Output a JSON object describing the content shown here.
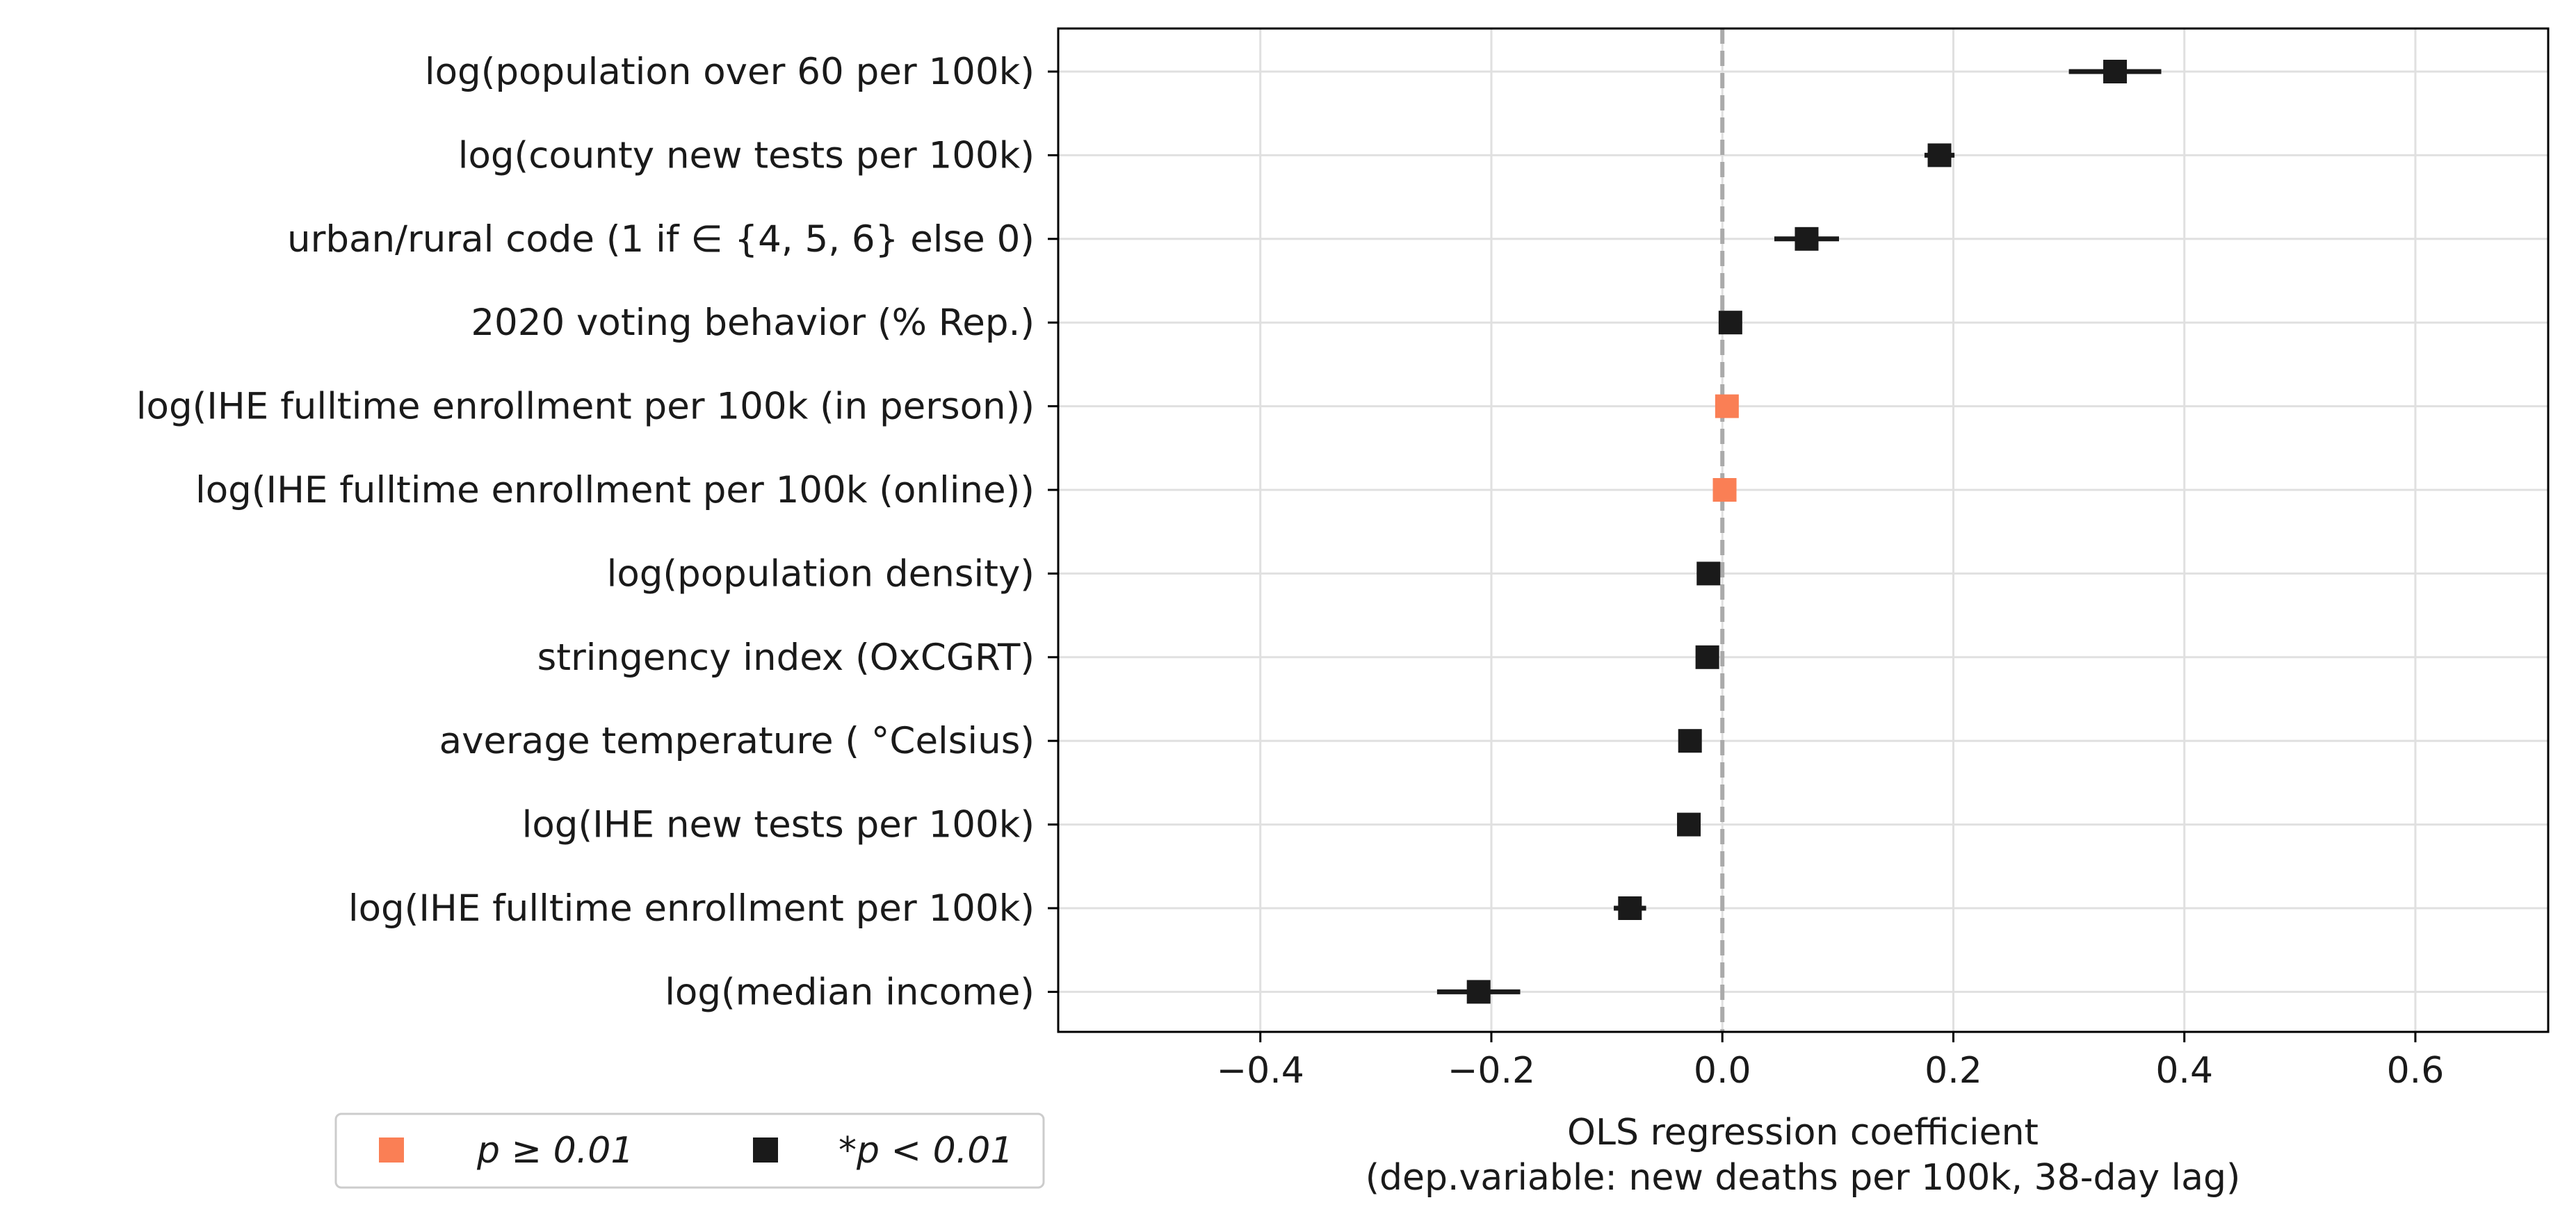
{
  "chart_data": {
    "type": "scatter",
    "xlabel": "OLS regression coefficient",
    "xlabel_sub": "(dep.variable: new deaths per 100k, 38-day lag)",
    "xlim": [
      -0.575,
      0.715
    ],
    "xticks": [
      -0.4,
      -0.2,
      0.0,
      0.2,
      0.4,
      0.6
    ],
    "xtick_labels": [
      "−0.4",
      "−0.2",
      "0.0",
      "0.2",
      "0.4",
      "0.6"
    ],
    "grid": true,
    "reference_line": {
      "x": 0.0,
      "style": "dashed",
      "color": "#aaaaaa"
    },
    "legend": {
      "position": "bottom-left",
      "entries": [
        {
          "label": "p ≥ 0.01",
          "color": "#fa7f55"
        },
        {
          "label": "*p < 0.01",
          "color": "#1a1a1a"
        }
      ]
    },
    "colors": {
      "not_significant": "#fa7f55",
      "significant": "#1a1a1a"
    },
    "points": [
      {
        "label": "log(population over 60 per 100k)",
        "coef": 0.34,
        "ci": [
          0.3,
          0.38
        ],
        "significant": true
      },
      {
        "label": "log(county new tests per 100k)",
        "coef": 0.188,
        "ci": [
          0.175,
          0.201
        ],
        "significant": true
      },
      {
        "label": "urban/rural code (1 if  ∈ {4, 5, 6} else 0)",
        "coef": 0.073,
        "ci": [
          0.045,
          0.101
        ],
        "significant": true
      },
      {
        "label": "2020 voting behavior (% Rep.)",
        "coef": 0.007,
        "ci": [
          0.004,
          0.01
        ],
        "significant": true
      },
      {
        "label": "log(IHE fulltime enrollment per 100k (in person))",
        "coef": 0.004,
        "ci": [
          0.0,
          0.008
        ],
        "significant": false
      },
      {
        "label": "log(IHE fulltime enrollment per 100k (online))",
        "coef": 0.002,
        "ci": [
          -0.001,
          0.005
        ],
        "significant": false
      },
      {
        "label": "log(population density)",
        "coef": -0.012,
        "ci": [
          -0.016,
          -0.008
        ],
        "significant": true
      },
      {
        "label": "stringency index (OxCGRT)",
        "coef": -0.013,
        "ci": [
          -0.018,
          -0.008
        ],
        "significant": true
      },
      {
        "label": "average temperature ( °Celsius)",
        "coef": -0.028,
        "ci": [
          -0.031,
          -0.025
        ],
        "significant": true
      },
      {
        "label": "log(IHE new tests per 100k)",
        "coef": -0.029,
        "ci": [
          -0.032,
          -0.026
        ],
        "significant": true
      },
      {
        "label": "log(IHE fulltime enrollment per 100k)",
        "coef": -0.08,
        "ci": [
          -0.094,
          -0.066
        ],
        "significant": true
      },
      {
        "label": "log(median income)",
        "coef": -0.211,
        "ci": [
          -0.247,
          -0.175
        ],
        "significant": true
      }
    ]
  }
}
